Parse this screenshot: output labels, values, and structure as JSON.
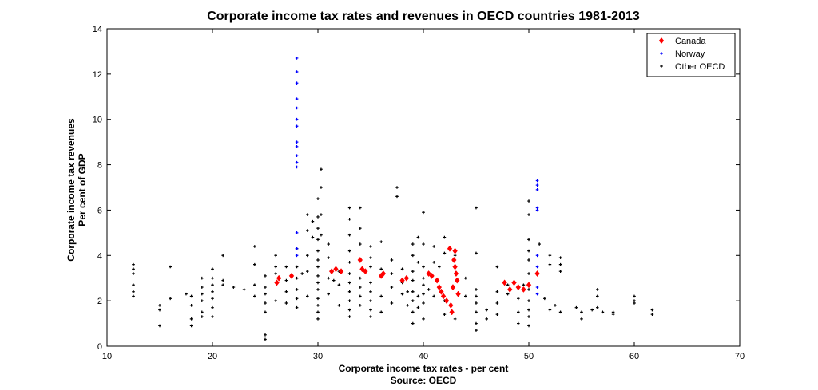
{
  "chart_data": {
    "type": "scatter",
    "title": "Corporate income tax rates and revenues in OECD countries 1981-2013",
    "xlabel": "Corporate income tax rates - per cent",
    "xlabel2": "Source: OECD",
    "ylabel": "Corporate income tax revenues",
    "ylabel2": "Per cent of GDP",
    "xlim": [
      10,
      70
    ],
    "ylim": [
      0,
      14
    ],
    "xticks": [
      10,
      20,
      30,
      40,
      50,
      60,
      70
    ],
    "yticks": [
      0,
      2,
      4,
      6,
      8,
      10,
      12,
      14
    ],
    "grid": false,
    "legend_position": "top-right",
    "series": [
      {
        "name": "Canada",
        "color": "#ff0000",
        "marker": "diamond",
        "points": [
          [
            26.1,
            2.8
          ],
          [
            26.3,
            3.0
          ],
          [
            27.5,
            3.1
          ],
          [
            31.3,
            3.3
          ],
          [
            31.7,
            3.4
          ],
          [
            32.2,
            3.3
          ],
          [
            34.0,
            3.8
          ],
          [
            34.2,
            3.4
          ],
          [
            34.5,
            3.3
          ],
          [
            36.0,
            3.1
          ],
          [
            36.2,
            3.2
          ],
          [
            38.0,
            2.9
          ],
          [
            38.4,
            3.0
          ],
          [
            40.5,
            3.2
          ],
          [
            40.8,
            3.1
          ],
          [
            41.3,
            2.9
          ],
          [
            41.5,
            2.6
          ],
          [
            41.7,
            2.4
          ],
          [
            41.9,
            2.2
          ],
          [
            42.2,
            2.0
          ],
          [
            42.5,
            4.3
          ],
          [
            42.6,
            1.8
          ],
          [
            42.8,
            2.6
          ],
          [
            42.9,
            3.8
          ],
          [
            43.0,
            3.5
          ],
          [
            43.0,
            4.2
          ],
          [
            43.1,
            3.2
          ],
          [
            43.2,
            2.9
          ],
          [
            43.3,
            2.3
          ],
          [
            42.7,
            1.5
          ],
          [
            47.7,
            2.8
          ],
          [
            48.2,
            2.5
          ],
          [
            48.6,
            2.8
          ],
          [
            49.0,
            2.6
          ],
          [
            49.5,
            2.5
          ],
          [
            50.0,
            2.7
          ],
          [
            50.8,
            3.2
          ]
        ]
      },
      {
        "name": "Norway",
        "color": "#0000ff",
        "marker": "plus",
        "points": [
          [
            28.0,
            12.7
          ],
          [
            28.0,
            12.1
          ],
          [
            28.0,
            11.6
          ],
          [
            28.0,
            10.9
          ],
          [
            28.0,
            10.5
          ],
          [
            28.0,
            10.0
          ],
          [
            28.0,
            9.7
          ],
          [
            28.0,
            9.0
          ],
          [
            28.0,
            8.8
          ],
          [
            28.0,
            8.4
          ],
          [
            28.0,
            8.1
          ],
          [
            28.0,
            7.9
          ],
          [
            28.0,
            5.0
          ],
          [
            28.0,
            4.3
          ],
          [
            28.0,
            4.0
          ],
          [
            50.8,
            7.3
          ],
          [
            50.8,
            7.1
          ],
          [
            50.8,
            6.9
          ],
          [
            50.8,
            6.1
          ],
          [
            50.8,
            6.0
          ],
          [
            50.8,
            4.0
          ],
          [
            50.8,
            3.5
          ],
          [
            50.8,
            2.6
          ],
          [
            50.8,
            2.3
          ]
        ]
      },
      {
        "name": "Other OECD",
        "color": "#000000",
        "marker": "plus",
        "points": [
          [
            12.5,
            3.6
          ],
          [
            12.5,
            3.4
          ],
          [
            12.5,
            3.2
          ],
          [
            12.5,
            2.7
          ],
          [
            12.5,
            2.4
          ],
          [
            12.5,
            2.2
          ],
          [
            15.0,
            1.8
          ],
          [
            15.0,
            1.6
          ],
          [
            15.0,
            0.9
          ],
          [
            16.0,
            3.5
          ],
          [
            16.0,
            2.1
          ],
          [
            17.5,
            2.3
          ],
          [
            18.0,
            2.2
          ],
          [
            18.0,
            1.8
          ],
          [
            18.0,
            1.2
          ],
          [
            18.0,
            0.9
          ],
          [
            19.0,
            3.0
          ],
          [
            19.0,
            2.6
          ],
          [
            19.0,
            2.3
          ],
          [
            19.0,
            2.0
          ],
          [
            19.0,
            1.5
          ],
          [
            19.0,
            1.3
          ],
          [
            20.0,
            3.4
          ],
          [
            20.0,
            3.0
          ],
          [
            20.0,
            2.7
          ],
          [
            20.0,
            2.4
          ],
          [
            20.0,
            2.1
          ],
          [
            20.0,
            1.7
          ],
          [
            20.0,
            1.3
          ],
          [
            21.0,
            4.0
          ],
          [
            21.0,
            2.9
          ],
          [
            21.0,
            2.7
          ],
          [
            22.0,
            2.6
          ],
          [
            23.0,
            2.5
          ],
          [
            24.0,
            4.4
          ],
          [
            24.0,
            3.6
          ],
          [
            24.0,
            2.7
          ],
          [
            24.0,
            2.2
          ],
          [
            25.0,
            3.1
          ],
          [
            25.0,
            2.6
          ],
          [
            25.0,
            2.3
          ],
          [
            25.0,
            1.9
          ],
          [
            25.0,
            1.5
          ],
          [
            25.0,
            0.5
          ],
          [
            25.0,
            0.3
          ],
          [
            26.0,
            4.0
          ],
          [
            26.0,
            3.5
          ],
          [
            26.0,
            3.2
          ],
          [
            26.0,
            2.0
          ],
          [
            27.0,
            3.5
          ],
          [
            27.0,
            2.9
          ],
          [
            27.0,
            2.4
          ],
          [
            27.0,
            1.9
          ],
          [
            28.0,
            4.3
          ],
          [
            28.0,
            3.5
          ],
          [
            28.0,
            3.0
          ],
          [
            28.0,
            2.5
          ],
          [
            28.0,
            2.1
          ],
          [
            28.0,
            1.7
          ],
          [
            28.5,
            3.2
          ],
          [
            29.0,
            5.8
          ],
          [
            29.0,
            5.1
          ],
          [
            29.0,
            4.0
          ],
          [
            29.0,
            3.3
          ],
          [
            29.0,
            2.2
          ],
          [
            29.5,
            5.5
          ],
          [
            29.5,
            4.8
          ],
          [
            30.0,
            6.5
          ],
          [
            30.0,
            5.7
          ],
          [
            30.0,
            5.2
          ],
          [
            30.0,
            4.7
          ],
          [
            30.0,
            4.2
          ],
          [
            30.0,
            3.8
          ],
          [
            30.0,
            3.5
          ],
          [
            30.0,
            3.1
          ],
          [
            30.0,
            2.8
          ],
          [
            30.0,
            2.5
          ],
          [
            30.0,
            2.1
          ],
          [
            30.0,
            1.8
          ],
          [
            30.0,
            1.5
          ],
          [
            30.0,
            1.2
          ],
          [
            30.3,
            7.8
          ],
          [
            30.3,
            7.0
          ],
          [
            30.3,
            5.8
          ],
          [
            30.3,
            4.9
          ],
          [
            31.0,
            4.5
          ],
          [
            31.0,
            3.9
          ],
          [
            31.0,
            3.0
          ],
          [
            31.0,
            2.3
          ],
          [
            31.5,
            2.9
          ],
          [
            32.0,
            3.3
          ],
          [
            32.0,
            2.7
          ],
          [
            32.0,
            1.8
          ],
          [
            33.0,
            6.1
          ],
          [
            33.0,
            5.6
          ],
          [
            33.0,
            4.9
          ],
          [
            33.0,
            4.2
          ],
          [
            33.0,
            3.7
          ],
          [
            33.0,
            3.2
          ],
          [
            33.0,
            2.8
          ],
          [
            33.0,
            2.4
          ],
          [
            33.0,
            2.0
          ],
          [
            33.0,
            1.6
          ],
          [
            33.0,
            1.3
          ],
          [
            34.0,
            6.1
          ],
          [
            34.0,
            5.2
          ],
          [
            34.0,
            4.5
          ],
          [
            34.0,
            3.0
          ],
          [
            34.0,
            2.6
          ],
          [
            34.0,
            2.2
          ],
          [
            34.0,
            1.8
          ],
          [
            35.0,
            4.4
          ],
          [
            35.0,
            3.9
          ],
          [
            35.0,
            3.5
          ],
          [
            35.0,
            2.8
          ],
          [
            35.0,
            2.4
          ],
          [
            35.0,
            2.0
          ],
          [
            35.0,
            1.6
          ],
          [
            35.0,
            1.3
          ],
          [
            36.0,
            4.6
          ],
          [
            36.0,
            3.4
          ],
          [
            36.0,
            2.2
          ],
          [
            36.0,
            1.5
          ],
          [
            37.0,
            3.8
          ],
          [
            37.0,
            3.2
          ],
          [
            37.0,
            2.6
          ],
          [
            37.0,
            1.9
          ],
          [
            37.5,
            7.0
          ],
          [
            37.5,
            6.6
          ],
          [
            38.0,
            3.4
          ],
          [
            38.0,
            2.8
          ],
          [
            38.0,
            2.3
          ],
          [
            38.5,
            2.4
          ],
          [
            38.5,
            1.8
          ],
          [
            39.0,
            4.5
          ],
          [
            39.0,
            4.0
          ],
          [
            39.0,
            3.3
          ],
          [
            39.0,
            2.9
          ],
          [
            39.0,
            2.4
          ],
          [
            39.0,
            2.0
          ],
          [
            39.0,
            1.5
          ],
          [
            39.0,
            1.0
          ],
          [
            39.5,
            4.8
          ],
          [
            39.5,
            3.7
          ],
          [
            39.5,
            2.2
          ],
          [
            39.5,
            1.7
          ],
          [
            40.0,
            5.9
          ],
          [
            40.0,
            4.5
          ],
          [
            40.0,
            3.5
          ],
          [
            40.0,
            3.0
          ],
          [
            40.0,
            2.7
          ],
          [
            40.0,
            2.3
          ],
          [
            40.0,
            1.9
          ],
          [
            40.0,
            1.2
          ],
          [
            40.5,
            2.5
          ],
          [
            41.0,
            4.4
          ],
          [
            41.0,
            3.7
          ],
          [
            41.0,
            2.2
          ],
          [
            41.5,
            3.5
          ],
          [
            42.0,
            4.8
          ],
          [
            42.0,
            4.1
          ],
          [
            42.0,
            2.0
          ],
          [
            42.0,
            1.4
          ],
          [
            43.0,
            4.0
          ],
          [
            43.0,
            1.2
          ],
          [
            44.0,
            3.0
          ],
          [
            44.0,
            2.2
          ],
          [
            45.0,
            6.1
          ],
          [
            45.0,
            4.1
          ],
          [
            45.0,
            2.5
          ],
          [
            45.0,
            2.2
          ],
          [
            45.0,
            1.9
          ],
          [
            45.0,
            1.5
          ],
          [
            45.0,
            1.0
          ],
          [
            45.0,
            0.7
          ],
          [
            46.0,
            1.6
          ],
          [
            46.0,
            1.2
          ],
          [
            47.0,
            3.5
          ],
          [
            47.0,
            2.4
          ],
          [
            47.0,
            1.9
          ],
          [
            47.0,
            1.4
          ],
          [
            48.0,
            2.7
          ],
          [
            48.0,
            2.3
          ],
          [
            49.0,
            2.1
          ],
          [
            49.0,
            1.5
          ],
          [
            49.0,
            1.0
          ],
          [
            49.5,
            2.7
          ],
          [
            50.0,
            6.4
          ],
          [
            50.0,
            5.8
          ],
          [
            50.0,
            4.7
          ],
          [
            50.0,
            4.2
          ],
          [
            50.0,
            3.8
          ],
          [
            50.0,
            3.2
          ],
          [
            50.0,
            2.5
          ],
          [
            50.0,
            2.0
          ],
          [
            50.0,
            1.6
          ],
          [
            50.0,
            1.3
          ],
          [
            50.0,
            0.9
          ],
          [
            51.0,
            4.5
          ],
          [
            51.5,
            2.1
          ],
          [
            52.0,
            4.0
          ],
          [
            52.0,
            3.6
          ],
          [
            52.0,
            1.6
          ],
          [
            52.5,
            1.8
          ],
          [
            53.0,
            3.9
          ],
          [
            53.0,
            3.6
          ],
          [
            53.0,
            3.3
          ],
          [
            53.0,
            1.5
          ],
          [
            54.5,
            1.7
          ],
          [
            55.0,
            1.5
          ],
          [
            55.0,
            1.2
          ],
          [
            56.0,
            1.6
          ],
          [
            56.5,
            2.5
          ],
          [
            56.5,
            2.2
          ],
          [
            56.5,
            1.7
          ],
          [
            57.0,
            1.5
          ],
          [
            58.0,
            1.5
          ],
          [
            58.0,
            1.4
          ],
          [
            60.0,
            2.2
          ],
          [
            60.0,
            2.0
          ],
          [
            60.0,
            1.9
          ],
          [
            61.7,
            1.6
          ],
          [
            61.7,
            1.4
          ]
        ]
      }
    ]
  }
}
